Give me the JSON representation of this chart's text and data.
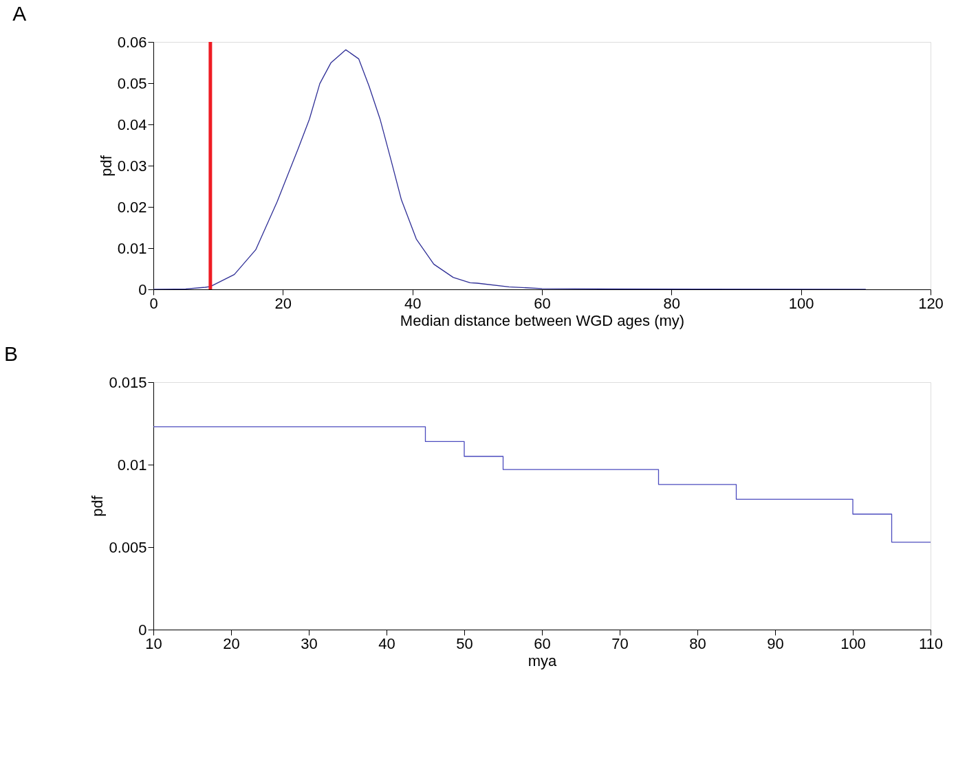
{
  "chart_data": [
    {
      "type": "line",
      "title": "A",
      "xlabel": "Median distance between WGD ages (my)",
      "ylabel": "pdf",
      "x": [
        0,
        5,
        8,
        8.8,
        12.5,
        15.8,
        19.1,
        22.4,
        24.1,
        25.7,
        27.4,
        29.7,
        31.7,
        33.3,
        35.0,
        36.7,
        38.3,
        40.6,
        43.3,
        46.3,
        48.9,
        50,
        54.9,
        60,
        70,
        110
      ],
      "series": [
        {
          "color": "#2e2e96",
          "values": [
            0,
            0.0001,
            0.0005,
            0.0007,
            0.0036,
            0.0096,
            0.0212,
            0.0343,
            0.0413,
            0.0499,
            0.0549,
            0.0581,
            0.0559,
            0.0493,
            0.0413,
            0.0313,
            0.0217,
            0.0122,
            0.0061,
            0.0029,
            0.0016,
            0.0015,
            0.0006,
            0.0002,
            0.0001,
            0
          ]
        }
      ],
      "ref_lines": [
        {
          "axis": "x",
          "value": 8.8,
          "color": "#ee1c24"
        }
      ],
      "xlim": [
        0,
        120
      ],
      "xticks": [
        0,
        20,
        40,
        60,
        80,
        100,
        120
      ],
      "ylim": [
        0,
        0.06
      ],
      "yticks": [
        0,
        0.01,
        0.02,
        0.03,
        0.04,
        0.05,
        0.06
      ],
      "grid": false
    },
    {
      "type": "step",
      "title": "B",
      "xlabel": "mya",
      "ylabel": "pdf",
      "x": [
        10,
        45,
        50,
        55,
        75,
        85,
        100,
        105,
        110
      ],
      "series": [
        {
          "color": "#4b4bbe",
          "values": [
            0.0123,
            0.0114,
            0.0105,
            0.0097,
            0.0088,
            0.0079,
            0.007,
            0.0053,
            0.0053
          ]
        }
      ],
      "xlim": [
        10,
        110
      ],
      "xticks": [
        10,
        20,
        30,
        40,
        50,
        60,
        70,
        80,
        90,
        100,
        110
      ],
      "ylim": [
        0,
        0.015
      ],
      "yticks": [
        0,
        0.005,
        0.01,
        0.015
      ],
      "grid": false
    }
  ]
}
